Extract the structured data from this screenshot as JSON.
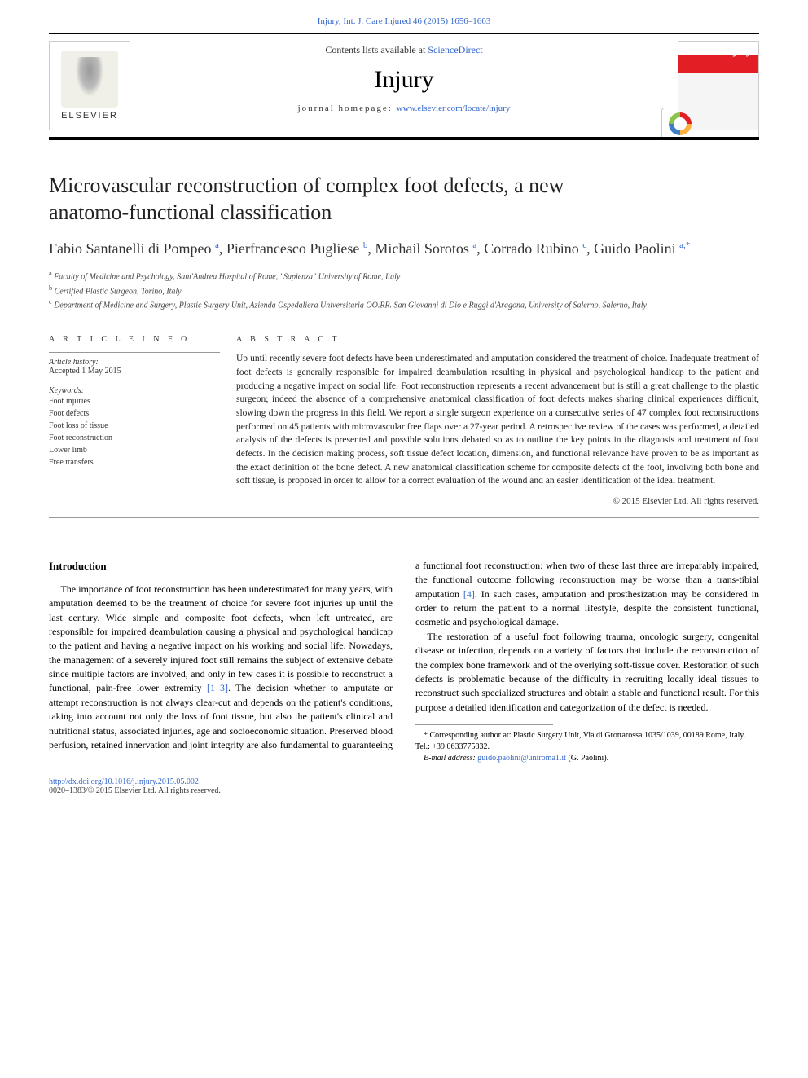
{
  "header": {
    "citation": "Injury, Int. J. Care Injured 46 (2015) 1656–1663",
    "contents_prefix": "Contents lists available at ",
    "contents_link": "ScienceDirect",
    "journal_name": "Injury",
    "homepage_prefix": "journal homepage: ",
    "homepage_link": "www.elsevier.com/locate/injury",
    "publisher": "ELSEVIER",
    "crossmark": "CrossMark",
    "cover_label": "Injury"
  },
  "article": {
    "title": "Microvascular reconstruction of complex foot defects, a new anatomo-functional classification",
    "authors_html": "Fabio Santanelli di Pompeo <sup>a</sup>, Pierfrancesco Pugliese <sup>b</sup>, Michail Sorotos <sup>a</sup>, Corrado Rubino <sup>c</sup>, Guido Paolini <sup>a,*</sup>",
    "affiliations": [
      "a Faculty of Medicine and Psychology, Sant'Andrea Hospital of Rome, \"Sapienza\" University of Rome, Italy",
      "b Certified Plastic Surgeon, Torino, Italy",
      "c Department of Medicine and Surgery, Plastic Surgery Unit, Azienda Ospedaliera Universitaria OO.RR. San Giovanni di Dio e Ruggi d'Aragona, University of Salerno, Salerno, Italy"
    ],
    "info_heading": "A R T I C L E   I N F O",
    "history_label": "Article history:",
    "history_value": "Accepted 1 May 2015",
    "keywords_label": "Keywords:",
    "keywords": [
      "Foot injuries",
      "Foot defects",
      "Foot loss of tissue",
      "Foot reconstruction",
      "Lower limb",
      "Free transfers"
    ],
    "abstract_heading": "A B S T R A C T",
    "abstract": "Up until recently severe foot defects have been underestimated and amputation considered the treatment of choice. Inadequate treatment of foot defects is generally responsible for impaired deambulation resulting in physical and psychological handicap to the patient and producing a negative impact on social life. Foot reconstruction represents a recent advancement but is still a great challenge to the plastic surgeon; indeed the absence of a comprehensive anatomical classification of foot defects makes sharing clinical experiences difficult, slowing down the progress in this field. We report a single surgeon experience on a consecutive series of 47 complex foot reconstructions performed on 45 patients with microvascular free flaps over a 27-year period. A retrospective review of the cases was performed, a detailed analysis of the defects is presented and possible solutions debated so as to outline the key points in the diagnosis and treatment of foot defects. In the decision making process, soft tissue defect location, dimension, and functional relevance have proven to be as important as the exact definition of the bone defect. A new anatomical classification scheme for composite defects of the foot, involving both bone and soft tissue, is proposed in order to allow for a correct evaluation of the wound and an easier identification of the ideal treatment.",
    "copyright": "© 2015 Elsevier Ltd. All rights reserved."
  },
  "body": {
    "intro_head": "Introduction",
    "p1": "The importance of foot reconstruction has been underestimated for many years, with amputation deemed to be the treatment of choice for severe foot injuries up until the last century. Wide simple and composite foot defects, when left untreated, are responsible for impaired deambulation causing a physical and psychological handicap to the patient and having a negative impact on his working and social life. Nowadays, the management of a severely injured foot still remains the subject of extensive debate since multiple factors are involved, and only in few cases it is possible to reconstruct a functional, pain-free lower extremity ",
    "ref1": "[1–3]",
    "p1b": ". The decision whether to amputate or attempt reconstruction is not always clear-cut and depends on the patient's",
    "p2": "conditions, taking into account not only the loss of foot tissue, but also the patient's clinical and nutritional status, associated injuries, age and socioeconomic situation. Preserved blood perfusion, retained innervation and joint integrity are also fundamental to guaranteeing a functional foot reconstruction: when two of these last three are irreparably impaired, the functional outcome following reconstruction may be worse than a trans-tibial amputation ",
    "ref2": "[4]",
    "p2b": ". In such cases, amputation and prosthesization may be considered in order to return the patient to a normal lifestyle, despite the consistent functional, cosmetic and psychological damage.",
    "p3": "The restoration of a useful foot following trauma, oncologic surgery, congenital disease or infection, depends on a variety of factors that include the reconstruction of the complex bone framework and of the overlying soft-tissue cover. Restoration of such defects is problematic because of the difficulty in recruiting locally ideal tissues to reconstruct such specialized structures and obtain a stable and functional result. For this purpose a detailed identification and categorization of the defect is needed."
  },
  "footnotes": {
    "corr": "* Corresponding author at: Plastic Surgery Unit, Via di Grottarossa 1035/1039, 00189 Rome, Italy. Tel.: +39 0633775832.",
    "email_label": "E-mail address: ",
    "email": "guido.paolini@uniroma1.it",
    "email_suffix": " (G. Paolini)."
  },
  "footer": {
    "doi": "http://dx.doi.org/10.1016/j.injury.2015.05.002",
    "issn": "0020–1383/© 2015 Elsevier Ltd. All rights reserved."
  },
  "colors": {
    "link": "#3366cc",
    "rule": "#999999",
    "text": "#222222",
    "accent_red": "#e31e24"
  }
}
